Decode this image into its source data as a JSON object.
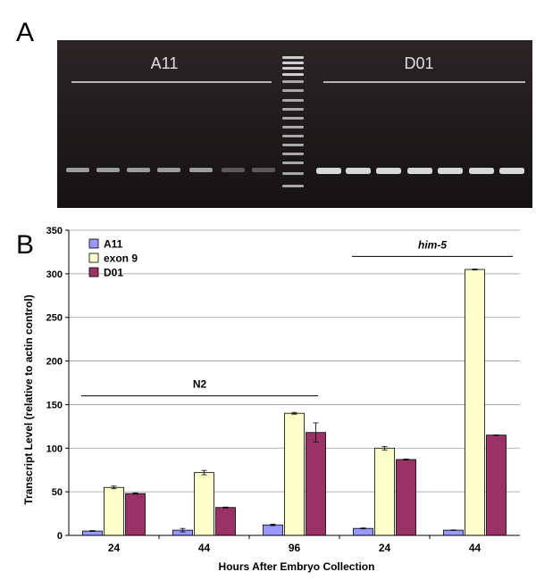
{
  "panel_a": {
    "letter": "A",
    "left_label": "A11",
    "right_label": "D01",
    "colors": {
      "background": "#1a1a1a",
      "bands": "#e8e8e8"
    }
  },
  "panel_b": {
    "letter": "B"
  },
  "chart_data": {
    "type": "bar",
    "categories": [
      "24",
      "44",
      "96",
      "24",
      "44"
    ],
    "series": [
      {
        "name": "A11",
        "color": "#9999ff",
        "values": [
          5,
          6,
          12,
          8,
          6
        ],
        "errors": [
          0.5,
          2,
          0.8,
          0.5,
          0.3
        ]
      },
      {
        "name": "exon 9",
        "color": "#ffffcc",
        "values": [
          55,
          72,
          140,
          100,
          305
        ],
        "errors": [
          1.5,
          2.5,
          1,
          2,
          0.5
        ]
      },
      {
        "name": "D01",
        "color": "#993366",
        "values": [
          48,
          32,
          118,
          87,
          115
        ],
        "errors": [
          0.8,
          0.5,
          11,
          0.6,
          0.3
        ]
      }
    ],
    "groups": [
      {
        "label": "N2",
        "italic": false,
        "level": 160,
        "from": 0,
        "to": 2
      },
      {
        "label": "him-5",
        "italic": true,
        "level": 320,
        "from": 3,
        "to": 4
      }
    ],
    "xlabel": "Hours After Embryo Collection",
    "ylabel": "Transcript Level (relative to actin control)",
    "ylim": [
      0,
      350
    ],
    "yticks": [
      0,
      50,
      100,
      150,
      200,
      250,
      300,
      350
    ],
    "grid": true,
    "legend": "top-left"
  }
}
